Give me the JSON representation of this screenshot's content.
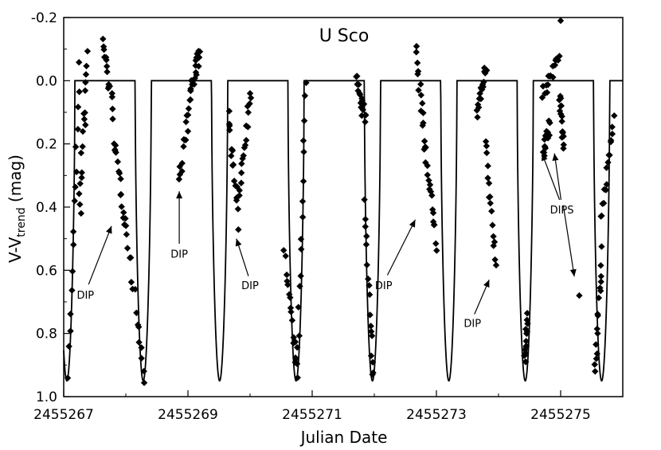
{
  "chart_data": {
    "type": "scatter",
    "title": "U Sco",
    "xlabel": "Julian Date",
    "ylabel_main": "V-V",
    "ylabel_sub": "trend",
    "ylabel_unit": " (mag)",
    "xlim": [
      2455267,
      2455276
    ],
    "ylim": [
      -0.2,
      1.0
    ],
    "y_inverted": true,
    "x_ticks": [
      "2455267",
      "2455269",
      "2455271",
      "2455273",
      "2455275"
    ],
    "x_tick_values": [
      2455267,
      2455269,
      2455271,
      2455273,
      2455275
    ],
    "y_ticks": [
      "-0.2",
      "0.0",
      "0.2",
      "0.4",
      "0.6",
      "0.8",
      "1.0"
    ],
    "y_tick_values": [
      -0.2,
      0.0,
      0.2,
      0.4,
      0.6,
      0.8,
      1.0
    ],
    "grid": false,
    "model_line": {
      "baseline": 0.0,
      "depth": 0.95,
      "eclipse_centers": [
        2455267.05,
        2455268.28,
        2455269.51,
        2455270.74,
        2455271.97,
        2455273.2,
        2455274.43,
        2455275.66
      ],
      "eclipse_halfwidth": 0.13
    },
    "series": [
      {
        "marker": "diamond",
        "color": "#000000",
        "clusters": [
          {
            "x0": 2455267.08,
            "x1": 2455267.25,
            "y0": 0.92,
            "y1": -0.05
          },
          {
            "x0": 2455267.25,
            "x1": 2455267.38,
            "y0": 0.4,
            "y1": -0.08
          },
          {
            "x0": 2455267.62,
            "x1": 2455267.8,
            "y0": -0.13,
            "y1": 0.1
          },
          {
            "x0": 2455267.8,
            "x1": 2455268.0,
            "y0": 0.18,
            "y1": 0.45
          },
          {
            "x0": 2455268.0,
            "x1": 2455268.3,
            "y0": 0.45,
            "y1": 0.95
          },
          {
            "x0": 2455268.85,
            "x1": 2455269.05,
            "y0": 0.32,
            "y1": 0.03
          },
          {
            "x0": 2455269.05,
            "x1": 2455269.2,
            "y0": 0.02,
            "y1": -0.09
          },
          {
            "x0": 2455269.65,
            "x1": 2455269.82,
            "y0": 0.1,
            "y1": 0.45
          },
          {
            "x0": 2455269.82,
            "x1": 2455270.0,
            "y0": 0.35,
            "y1": 0.04
          },
          {
            "x0": 2455270.55,
            "x1": 2455270.76,
            "y0": 0.55,
            "y1": 0.92
          },
          {
            "x0": 2455270.76,
            "x1": 2455270.9,
            "y0": 0.92,
            "y1": 0.0
          },
          {
            "x0": 2455271.7,
            "x1": 2455271.85,
            "y0": 0.0,
            "y1": 0.12
          },
          {
            "x0": 2455271.85,
            "x1": 2455271.98,
            "y0": 0.4,
            "y1": 0.93
          },
          {
            "x0": 2455272.68,
            "x1": 2455272.82,
            "y0": -0.09,
            "y1": 0.22
          },
          {
            "x0": 2455272.82,
            "x1": 2455273.0,
            "y0": 0.22,
            "y1": 0.52
          },
          {
            "x0": 2455273.65,
            "x1": 2455273.8,
            "y0": 0.1,
            "y1": -0.04
          },
          {
            "x0": 2455273.8,
            "x1": 2455273.95,
            "y0": 0.2,
            "y1": 0.58
          },
          {
            "x0": 2455274.42,
            "x1": 2455274.46,
            "y0": 0.9,
            "y1": 0.75
          },
          {
            "x0": 2455274.7,
            "x1": 2455274.98,
            "y0": 0.05,
            "y1": -0.08
          },
          {
            "x0": 2455274.72,
            "x1": 2455274.82,
            "y0": 0.22,
            "y1": 0.15
          },
          {
            "x0": 2455274.98,
            "x1": 2455275.05,
            "y0": 0.05,
            "y1": 0.2
          },
          {
            "x0": 2455275.55,
            "x1": 2455275.66,
            "y0": 0.94,
            "y1": 0.55
          },
          {
            "x0": 2455275.66,
            "x1": 2455275.85,
            "y0": 0.45,
            "y1": 0.1
          }
        ],
        "extra_points": [
          [
            2455267.28,
            0.42
          ],
          [
            2455267.35,
            0.14
          ],
          [
            2455269.0,
            0.16
          ],
          [
            2455269.04,
            0.06
          ],
          [
            2455270.0,
            0.04
          ],
          [
            2455275.3,
            0.68
          ],
          [
            2455275.0,
            -0.19
          ],
          [
            2455271.97,
            0.93
          ],
          [
            2455270.74,
            0.88
          ]
        ]
      }
    ],
    "annotations": [
      {
        "text": "DIP",
        "x": 2455267.35,
        "y": 0.69,
        "arrow_to": [
          2455267.77,
          0.46
        ]
      },
      {
        "text": "DIP",
        "x": 2455268.86,
        "y": 0.56,
        "arrow_to": [
          2455268.86,
          0.35
        ]
      },
      {
        "text": "DIP",
        "x": 2455270.0,
        "y": 0.66,
        "arrow_to": [
          2455269.78,
          0.5
        ]
      },
      {
        "text": "DIP",
        "x": 2455272.15,
        "y": 0.66,
        "arrow_to": [
          2455272.66,
          0.44
        ]
      },
      {
        "text": "DIP",
        "x": 2455273.58,
        "y": 0.78,
        "arrow_to": [
          2455273.85,
          0.63
        ]
      },
      {
        "text": "DIPS",
        "x": 2455275.02,
        "y": 0.42,
        "arrow_to": [
          2455274.7,
          0.23
        ]
      },
      {
        "text": "",
        "x": 2455275.02,
        "y": 0.42,
        "arrow_to": [
          2455274.9,
          0.23
        ]
      },
      {
        "text": "",
        "x": 2455275.02,
        "y": 0.42,
        "arrow_to": [
          2455275.22,
          0.62
        ]
      }
    ]
  }
}
